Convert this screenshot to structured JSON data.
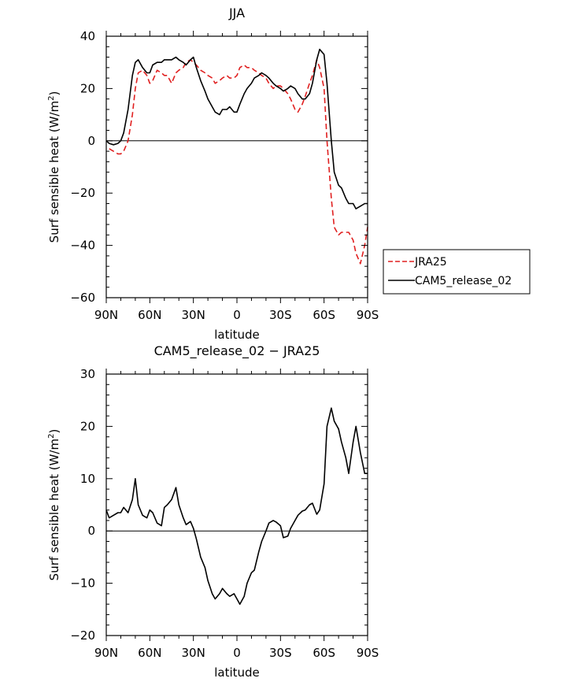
{
  "chart_data": [
    {
      "type": "line",
      "title": "JJA",
      "xlabel": "latitude",
      "ylabel": "Surf sensible heat (W/m²)",
      "ylabel_main": "Surf sensible heat (W/m",
      "ylabel_sup": "2",
      "ylabel_end": ")",
      "xlim": [
        -90,
        90
      ],
      "ylim": [
        -60,
        40
      ],
      "xticks": [
        -90,
        -60,
        -30,
        0,
        30,
        60,
        90
      ],
      "xtick_labels": [
        "90N",
        "60N",
        "30N",
        "0",
        "30S",
        "60S",
        "90S"
      ],
      "yticks": [
        -60,
        -40,
        -20,
        0,
        20,
        40
      ],
      "ytick_labels": [
        "−60",
        "−40",
        "−20",
        "0",
        "20",
        "40"
      ],
      "legend": [
        "JRA25",
        "CAM5_release_02"
      ],
      "series": [
        {
          "name": "JRA25",
          "color": "#e02020",
          "dash": true,
          "x": [
            -88,
            -85,
            -82,
            -80,
            -78,
            -75,
            -72,
            -70,
            -68,
            -65,
            -62,
            -60,
            -58,
            -55,
            -52,
            -50,
            -48,
            -45,
            -42,
            -40,
            -37,
            -35,
            -32,
            -30,
            -28,
            -25,
            -22,
            -20,
            -17,
            -15,
            -12,
            -10,
            -7,
            -5,
            -2,
            0,
            2,
            5,
            7,
            10,
            12,
            15,
            17,
            20,
            22,
            25,
            27,
            30,
            32,
            35,
            37,
            40,
            42,
            45,
            47,
            50,
            52,
            55,
            57,
            60,
            62,
            65,
            67,
            70,
            72,
            75,
            77,
            80,
            82,
            85,
            88,
            90
          ],
          "y": [
            -3,
            -4,
            -5,
            -5,
            -4,
            0,
            10,
            20,
            26,
            27,
            25,
            22,
            23,
            27,
            26,
            25,
            25,
            22,
            26,
            27,
            28,
            30,
            31,
            30,
            29,
            27,
            26,
            25,
            24,
            22,
            23,
            24,
            25,
            24,
            24,
            25,
            28,
            29,
            28,
            28,
            27,
            26,
            25,
            24,
            22,
            20,
            21,
            21,
            20,
            18,
            16,
            12,
            11,
            14,
            17,
            22,
            25,
            31,
            28,
            20,
            0,
            -22,
            -33,
            -36,
            -35,
            -35,
            -35,
            -38,
            -43,
            -47,
            -40,
            -33
          ]
        },
        {
          "name": "CAM5_release_02",
          "color": "#000000",
          "dash": false,
          "x": [
            -90,
            -88,
            -85,
            -82,
            -80,
            -78,
            -75,
            -72,
            -70,
            -68,
            -65,
            -62,
            -60,
            -58,
            -55,
            -52,
            -50,
            -48,
            -45,
            -42,
            -40,
            -37,
            -35,
            -32,
            -30,
            -28,
            -25,
            -22,
            -20,
            -17,
            -15,
            -12,
            -10,
            -7,
            -5,
            -2,
            0,
            2,
            5,
            7,
            10,
            12,
            15,
            17,
            20,
            22,
            25,
            27,
            30,
            32,
            35,
            37,
            40,
            42,
            45,
            47,
            50,
            52,
            55,
            57,
            60,
            62,
            65,
            67,
            70,
            72,
            75,
            77,
            80,
            82,
            85,
            88,
            90
          ],
          "y": [
            0,
            -1,
            -1.5,
            -1,
            0,
            3,
            12,
            25,
            30,
            31,
            28,
            26,
            26,
            29,
            30,
            30,
            31,
            31,
            31,
            32,
            31,
            30,
            29,
            31,
            32,
            28,
            23,
            19,
            16,
            13,
            11,
            10,
            12,
            12,
            13,
            11,
            11,
            14,
            18,
            20,
            22,
            24,
            25,
            26,
            25,
            24,
            22,
            21,
            20,
            19,
            20,
            21,
            20,
            18,
            16,
            16,
            18,
            22,
            31,
            35,
            33,
            22,
            0,
            -12,
            -17,
            -18,
            -22,
            -24,
            -24,
            -26,
            -25,
            -24,
            -24
          ]
        }
      ]
    },
    {
      "type": "line",
      "title": "CAM5_release_02 − JRA25",
      "xlabel": "latitude",
      "ylabel": "Surf sensible heat (W/m²)",
      "ylabel_main": "Surf sensible heat (W/m",
      "ylabel_sup": "2",
      "ylabel_end": ")",
      "xlim": [
        -90,
        90
      ],
      "ylim": [
        -20,
        30
      ],
      "xticks": [
        -90,
        -60,
        -30,
        0,
        30,
        60,
        90
      ],
      "xtick_labels": [
        "90N",
        "60N",
        "30N",
        "0",
        "30S",
        "60S",
        "90S"
      ],
      "yticks": [
        -20,
        -10,
        0,
        10,
        20,
        30
      ],
      "ytick_labels": [
        "−20",
        "−10",
        "0",
        "10",
        "20",
        "30"
      ],
      "series": [
        {
          "name": "CAM5_release_02 − JRA25",
          "color": "#000000",
          "dash": false,
          "x": [
            -90,
            -88,
            -85,
            -82,
            -80,
            -78,
            -75,
            -72,
            -70,
            -68,
            -65,
            -62,
            -60,
            -58,
            -55,
            -52,
            -50,
            -48,
            -45,
            -42,
            -40,
            -37,
            -35,
            -32,
            -30,
            -28,
            -25,
            -22,
            -20,
            -17,
            -15,
            -12,
            -10,
            -7,
            -5,
            -2,
            0,
            2,
            5,
            7,
            10,
            12,
            15,
            17,
            20,
            22,
            25,
            27,
            30,
            32,
            35,
            37,
            40,
            42,
            45,
            47,
            50,
            52,
            55,
            57,
            60,
            62,
            65,
            67,
            70,
            72,
            75,
            77,
            80,
            82,
            85,
            88,
            90
          ],
          "y": [
            4,
            2.5,
            3,
            3.5,
            3.5,
            4.5,
            3.5,
            6,
            10,
            5,
            3,
            2.5,
            4,
            3.5,
            1.5,
            1,
            4.5,
            5,
            6,
            8.3,
            5,
            2.5,
            1.2,
            1.8,
            0.5,
            -1.5,
            -5,
            -7,
            -9.5,
            -12,
            -13,
            -12,
            -11,
            -12,
            -12.5,
            -12,
            -13,
            -14,
            -12.5,
            -10,
            -8,
            -7.5,
            -4,
            -2,
            0,
            1.5,
            2,
            1.7,
            1,
            -1.3,
            -1,
            0.5,
            2,
            3,
            3.8,
            4,
            5,
            5.3,
            3.2,
            4,
            9,
            20,
            23.5,
            21,
            19.5,
            17,
            14,
            11,
            17,
            20,
            15,
            11,
            11
          ]
        }
      ]
    }
  ]
}
